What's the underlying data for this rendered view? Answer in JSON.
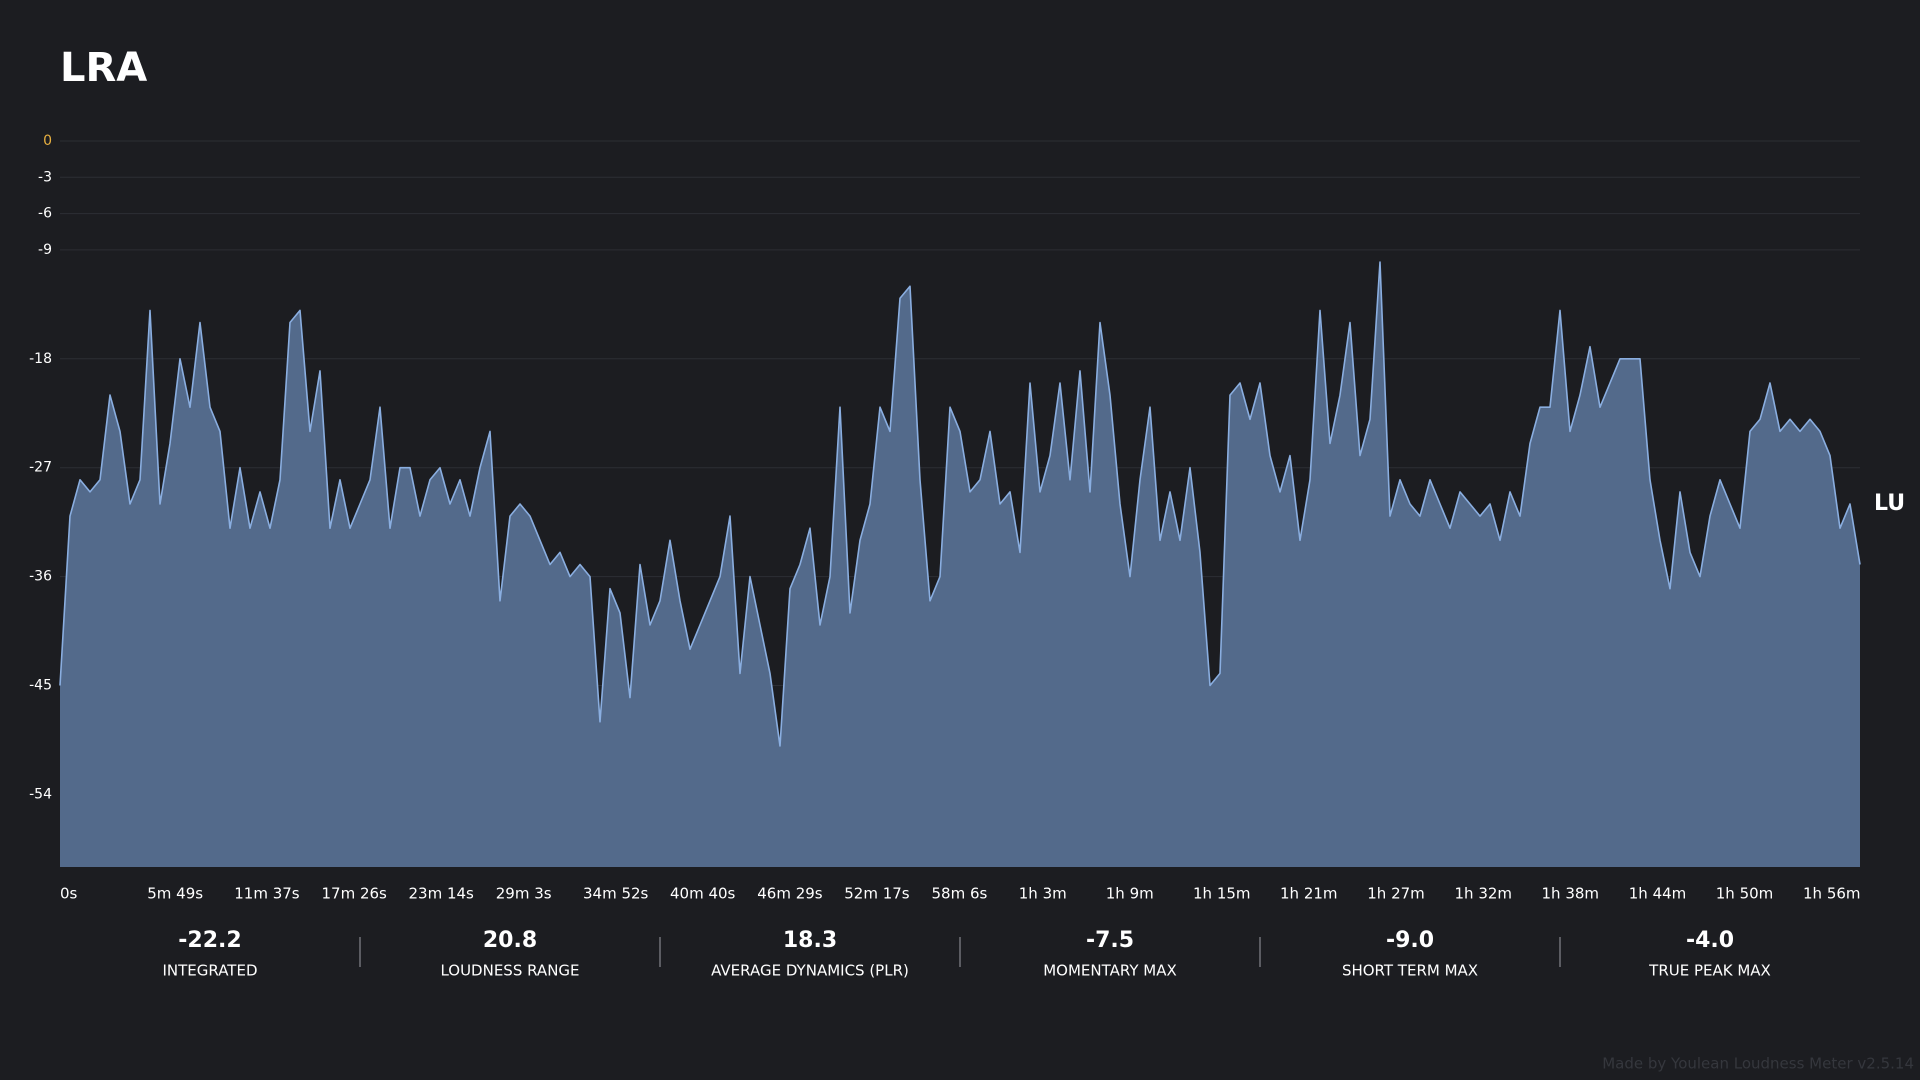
{
  "chart_data": {
    "type": "area",
    "title": "LRA",
    "unit_label": "LU",
    "footer": "Made by Youlean Loudness Meter v2.5.14",
    "background": "#1c1d21",
    "grid": true,
    "ylim": [
      -60,
      0
    ],
    "yticks": [
      0,
      -3,
      -6,
      -9,
      -18,
      -27,
      -36,
      -45,
      -54
    ],
    "reference_tick": {
      "value": 0,
      "color": "#e8b040"
    },
    "xlim": [
      0,
      7200
    ],
    "xticks": [
      {
        "value": 0,
        "label": "0s"
      },
      {
        "value": 349,
        "label": "5m 49s"
      },
      {
        "value": 697,
        "label": "11m 37s"
      },
      {
        "value": 1046,
        "label": "17m 26s"
      },
      {
        "value": 1394,
        "label": "23m 14s"
      },
      {
        "value": 1743,
        "label": "29m 3s"
      },
      {
        "value": 2092,
        "label": "34m 52s"
      },
      {
        "value": 2440,
        "label": "40m 40s"
      },
      {
        "value": 2789,
        "label": "46m 29s"
      },
      {
        "value": 3137,
        "label": "52m 17s"
      },
      {
        "value": 3486,
        "label": "58m 6s"
      },
      {
        "value": 3835,
        "label": "1h 3m"
      },
      {
        "value": 4183,
        "label": "1h 9m"
      },
      {
        "value": 4532,
        "label": "1h 15m"
      },
      {
        "value": 4880,
        "label": "1h 21m"
      },
      {
        "value": 5229,
        "label": "1h 27m"
      },
      {
        "value": 5578,
        "label": "1h 32m"
      },
      {
        "value": 5926,
        "label": "1h 38m"
      },
      {
        "value": 6275,
        "label": "1h 44m"
      },
      {
        "value": 6623,
        "label": "1h 50m"
      },
      {
        "value": 6972,
        "label": "1h 56m"
      }
    ],
    "x": [
      0,
      40,
      80,
      120,
      160,
      200,
      240,
      280,
      320,
      360,
      400,
      440,
      480,
      520,
      560,
      600,
      640,
      680,
      720,
      760,
      800,
      840,
      880,
      920,
      960,
      1000,
      1040,
      1080,
      1120,
      1160,
      1200,
      1240,
      1280,
      1320,
      1360,
      1400,
      1440,
      1480,
      1520,
      1560,
      1600,
      1640,
      1680,
      1720,
      1760,
      1800,
      1840,
      1880,
      1920,
      1960,
      2000,
      2040,
      2080,
      2120,
      2160,
      2200,
      2240,
      2280,
      2320,
      2360,
      2400,
      2440,
      2480,
      2520,
      2560,
      2600,
      2640,
      2680,
      2720,
      2760,
      2800,
      2840,
      2880,
      2920,
      2960,
      3000,
      3040,
      3080,
      3120,
      3160,
      3200,
      3240,
      3280,
      3320,
      3360,
      3400,
      3440,
      3480,
      3520,
      3560,
      3600,
      3640,
      3680,
      3720,
      3760,
      3800,
      3840,
      3880,
      3920,
      3960,
      4000,
      4040,
      4080,
      4120,
      4160,
      4200,
      4240,
      4280,
      4320,
      4360,
      4400,
      4440,
      4480,
      4520,
      4560,
      4600,
      4640,
      4680,
      4720,
      4760,
      4800,
      4840,
      4880,
      4920,
      4960,
      5000,
      5040,
      5080,
      5120,
      5160,
      5200,
      5240,
      5280,
      5320,
      5360,
      5400,
      5440,
      5480,
      5520,
      5560,
      5600,
      5640,
      5680,
      5720,
      5760,
      5800,
      5840,
      5880,
      5920,
      5960,
      6000,
      6040,
      6080,
      6120,
      6160,
      6200,
      6240,
      6280,
      6320,
      6360,
      6400,
      6440,
      6480,
      6520,
      6560,
      6600,
      6640,
      6680,
      6720,
      6760,
      6800,
      6840,
      6880,
      6920,
      6960,
      7000,
      7040,
      7080,
      7120,
      7160,
      7200
    ],
    "series": [
      {
        "name": "LRA",
        "color": "#8aaee0",
        "fill": "#536a8b",
        "values": [
          -45,
          -31,
          -28,
          -29,
          -28,
          -21,
          -24,
          -30,
          -28,
          -14,
          -30,
          -25,
          -18,
          -22,
          -15,
          -22,
          -24,
          -32,
          -27,
          -32,
          -29,
          -32,
          -28,
          -15,
          -14,
          -24,
          -19,
          -32,
          -28,
          -32,
          -30,
          -28,
          -22,
          -32,
          -27,
          -27,
          -31,
          -28,
          -27,
          -30,
          -28,
          -31,
          -27,
          -24,
          -38,
          -31,
          -30,
          -31,
          -33,
          -35,
          -34,
          -36,
          -35,
          -36,
          -48,
          -37,
          -39,
          -46,
          -35,
          -40,
          -38,
          -33,
          -38,
          -42,
          -40,
          -38,
          -36,
          -31,
          -44,
          -36,
          -40,
          -44,
          -50,
          -37,
          -35,
          -32,
          -40,
          -36,
          -22,
          -39,
          -33,
          -30,
          -22,
          -24,
          -13,
          -12,
          -28,
          -38,
          -36,
          -22,
          -24,
          -29,
          -28,
          -24,
          -30,
          -29,
          -34,
          -20,
          -29,
          -26,
          -20,
          -28,
          -19,
          -29,
          -15,
          -21,
          -30,
          -36,
          -28,
          -22,
          -33,
          -29,
          -33,
          -27,
          -34,
          -45,
          -44,
          -21,
          -20,
          -23,
          -20,
          -26,
          -29,
          -26,
          -33,
          -28,
          -14,
          -25,
          -21,
          -15,
          -26,
          -23,
          -10,
          -31,
          -28,
          -30,
          -31,
          -28,
          -30,
          -32,
          -29,
          -30,
          -31,
          -30,
          -33,
          -29,
          -31,
          -25,
          -22,
          -22,
          -14,
          -24,
          -21,
          -17,
          -22,
          -20,
          -18,
          -18,
          -18,
          -28,
          -33,
          -37,
          -29,
          -34,
          -36,
          -31,
          -28,
          -30,
          -32,
          -24,
          -23,
          -20,
          -24,
          -23,
          -24,
          -23,
          -24,
          -26,
          -32,
          -30,
          -35
        ]
      }
    ],
    "stats": [
      {
        "value": "-22.2",
        "label": "INTEGRATED"
      },
      {
        "value": "20.8",
        "label": "LOUDNESS RANGE"
      },
      {
        "value": "18.3",
        "label": "AVERAGE DYNAMICS (PLR)"
      },
      {
        "value": "-7.5",
        "label": "MOMENTARY MAX"
      },
      {
        "value": "-9.0",
        "label": "SHORT TERM MAX"
      },
      {
        "value": "-4.0",
        "label": "TRUE PEAK MAX"
      }
    ]
  }
}
